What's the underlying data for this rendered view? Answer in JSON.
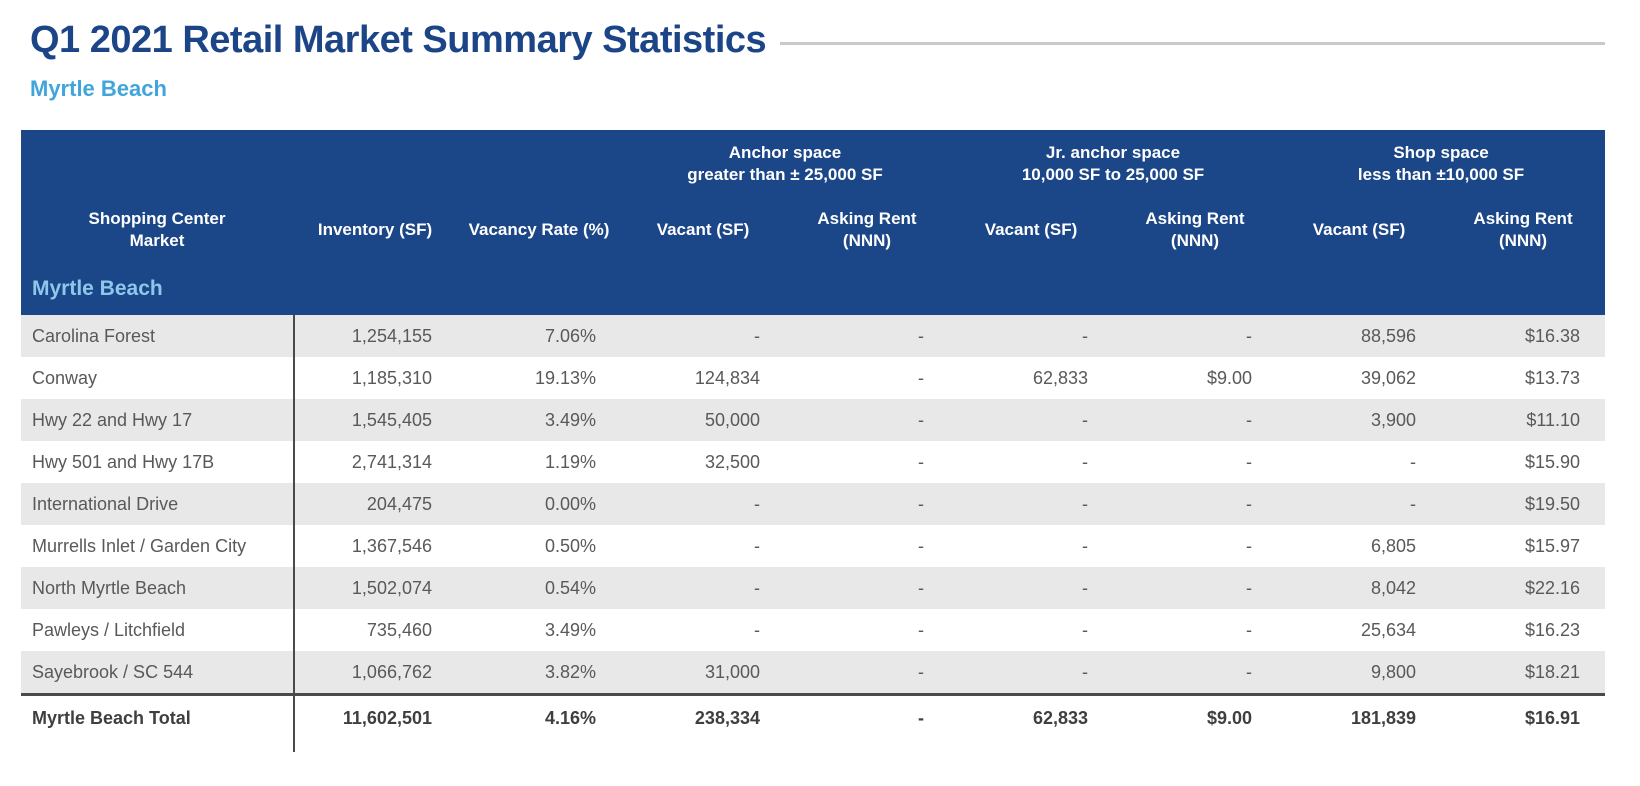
{
  "page": {
    "title": "Q1 2021 Retail Market Summary Statistics",
    "subtitle": "Myrtle Beach"
  },
  "table": {
    "group_headers": [
      "Anchor space\ngreater than ± 25,000 SF",
      "Jr. anchor space\n10,000 SF to 25,000 SF",
      "Shop space\nless than ±10,000 SF"
    ],
    "columns": [
      "Shopping Center\nMarket",
      "Inventory (SF)",
      "Vacancy Rate (%)",
      "Vacant (SF)",
      "Asking Rent\n(NNN)",
      "Vacant (SF)",
      "Asking Rent\n(NNN)",
      "Vacant (SF)",
      "Asking Rent\n(NNN)"
    ],
    "section_label": "Myrtle Beach",
    "rows": [
      {
        "market": "Carolina Forest",
        "inventory": "1,254,155",
        "vacancy_rate": "7.06%",
        "anchor_vacant": "-",
        "anchor_rent": "-",
        "jr_vacant": "-",
        "jr_rent": "-",
        "shop_vacant": "88,596",
        "shop_rent": "$16.38"
      },
      {
        "market": "Conway",
        "inventory": "1,185,310",
        "vacancy_rate": "19.13%",
        "anchor_vacant": "124,834",
        "anchor_rent": "-",
        "jr_vacant": "62,833",
        "jr_rent": "$9.00",
        "shop_vacant": "39,062",
        "shop_rent": "$13.73"
      },
      {
        "market": "Hwy 22 and Hwy 17",
        "inventory": "1,545,405",
        "vacancy_rate": "3.49%",
        "anchor_vacant": "50,000",
        "anchor_rent": "-",
        "jr_vacant": "-",
        "jr_rent": "-",
        "shop_vacant": "3,900",
        "shop_rent": "$11.10"
      },
      {
        "market": "Hwy 501 and Hwy 17B",
        "inventory": "2,741,314",
        "vacancy_rate": "1.19%",
        "anchor_vacant": "32,500",
        "anchor_rent": "-",
        "jr_vacant": "-",
        "jr_rent": "-",
        "shop_vacant": "-",
        "shop_rent": "$15.90"
      },
      {
        "market": "International Drive",
        "inventory": "204,475",
        "vacancy_rate": "0.00%",
        "anchor_vacant": "-",
        "anchor_rent": "-",
        "jr_vacant": "-",
        "jr_rent": "-",
        "shop_vacant": "-",
        "shop_rent": "$19.50"
      },
      {
        "market": "Murrells Inlet / Garden City",
        "inventory": "1,367,546",
        "vacancy_rate": "0.50%",
        "anchor_vacant": "-",
        "anchor_rent": "-",
        "jr_vacant": "-",
        "jr_rent": "-",
        "shop_vacant": "6,805",
        "shop_rent": "$15.97"
      },
      {
        "market": "North Myrtle Beach",
        "inventory": "1,502,074",
        "vacancy_rate": "0.54%",
        "anchor_vacant": "-",
        "anchor_rent": "-",
        "jr_vacant": "-",
        "jr_rent": "-",
        "shop_vacant": "8,042",
        "shop_rent": "$22.16"
      },
      {
        "market": "Pawleys / Litchfield",
        "inventory": "735,460",
        "vacancy_rate": "3.49%",
        "anchor_vacant": "-",
        "anchor_rent": "-",
        "jr_vacant": "-",
        "jr_rent": "-",
        "shop_vacant": "25,634",
        "shop_rent": "$16.23"
      },
      {
        "market": "Sayebrook / SC 544",
        "inventory": "1,066,762",
        "vacancy_rate": "3.82%",
        "anchor_vacant": "31,000",
        "anchor_rent": "-",
        "jr_vacant": "-",
        "jr_rent": "-",
        "shop_vacant": "9,800",
        "shop_rent": "$18.21"
      }
    ],
    "total": {
      "market": "Myrtle Beach Total",
      "inventory": "11,602,501",
      "vacancy_rate": "4.16%",
      "anchor_vacant": "238,334",
      "anchor_rent": "-",
      "jr_vacant": "62,833",
      "jr_rent": "$9.00",
      "shop_vacant": "181,839",
      "shop_rent": "$16.91"
    }
  },
  "colors": {
    "title_blue": "#1C4587",
    "subtitle_blue": "#41A5DC",
    "header_blue": "#1B4688",
    "section_blue": "#8DC8EB",
    "row_gray": "#E8E8E8",
    "rule_gray": "#C9C9C9",
    "divider_dark": "#4A4A4A",
    "body_text": "#595959",
    "total_text": "#3F3F3F"
  }
}
